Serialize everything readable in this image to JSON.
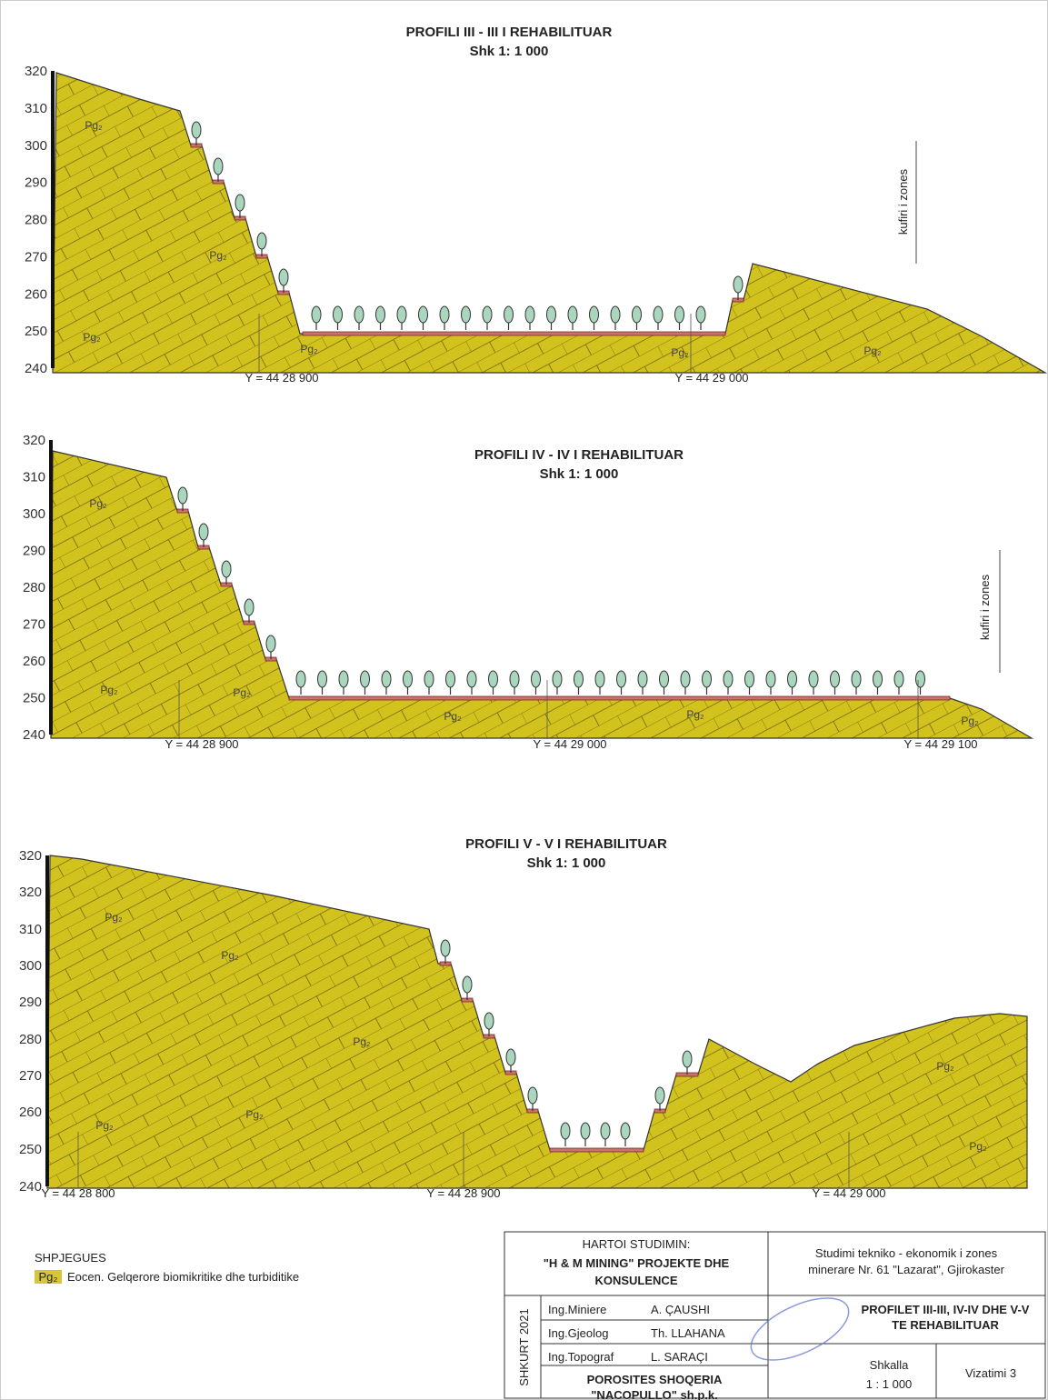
{
  "profiles": [
    {
      "title": "PROFILI III - III I REHABILITUAR",
      "scale": "Shk 1: 1 000",
      "yticks": [
        "320",
        "310",
        "300",
        "290",
        "280",
        "270",
        "260",
        "250",
        "240"
      ],
      "xlabels": [
        "Y = 44 28 900",
        "Y = 44 29 000"
      ],
      "zone": "kufiri i zones",
      "units": [
        "Pg₂",
        "Pg₂",
        "Pg₂",
        "Pg₂",
        "Pg₂",
        "Pg₂"
      ]
    },
    {
      "title": "PROFILI IV - IV I REHABILITUAR",
      "scale": "Shk 1: 1 000",
      "yticks": [
        "320",
        "310",
        "300",
        "290",
        "280",
        "270",
        "260",
        "250",
        "240"
      ],
      "xlabels": [
        "Y = 44 28 900",
        "Y = 44 29 000",
        "Y = 44 29 100"
      ],
      "zone": "kufiri i zones",
      "units": [
        "Pg₂",
        "Pg₂",
        "Pg₂",
        "Pg₂",
        "Pg₂",
        "Pg₂"
      ]
    },
    {
      "title": "PROFILI V - V I REHABILITUAR",
      "scale": "Shk 1: 1 000",
      "yticks": [
        "320",
        "320",
        "310",
        "300",
        "290",
        "280",
        "270",
        "260",
        "250",
        "240"
      ],
      "xlabels": [
        "Y = 44 28 800",
        "Y = 44 28 900",
        "Y = 44 29 000"
      ],
      "units": [
        "Pg₂",
        "Pg₂",
        "Pg₂",
        "Pg₂",
        "Pg₂",
        "Pg₂",
        "Pg₂"
      ]
    }
  ],
  "legend": {
    "title": "SHPJEGUES",
    "symbol": "Pg₂",
    "text": "Eocen. Gelqerore biomikritike dhe turbiditike"
  },
  "title_block": {
    "author_heading": "HARTOI STUDIMIN:",
    "author": [
      "\"H & M MINING\" PROJEKTE DHE",
      "KONSULENCE"
    ],
    "study": [
      "Studimi tekniko - ekonomik i zones",
      "minerare Nr. 61 \"Lazarat\", Gjirokaster"
    ],
    "date": "SHKURT 2021",
    "staff": [
      {
        "role": "Ing.Miniere",
        "name": "A. ÇAUSHI"
      },
      {
        "role": "Ing.Gjeolog",
        "name": "Th. LLAHANA"
      },
      {
        "role": "Ing.Topograf",
        "name": "L. SARAÇI"
      }
    ],
    "drawing_title": [
      "PROFILET III-III, IV-IV DHE V-V",
      "TE REHABILITUAR"
    ],
    "client": [
      "POROSITES SHOQERIA",
      "\"NACOPULLO\" sh.p.k."
    ],
    "scale_label": "Shkalla",
    "scale": "1 : 1 000",
    "drawing_no": "Vizatimi 3"
  }
}
